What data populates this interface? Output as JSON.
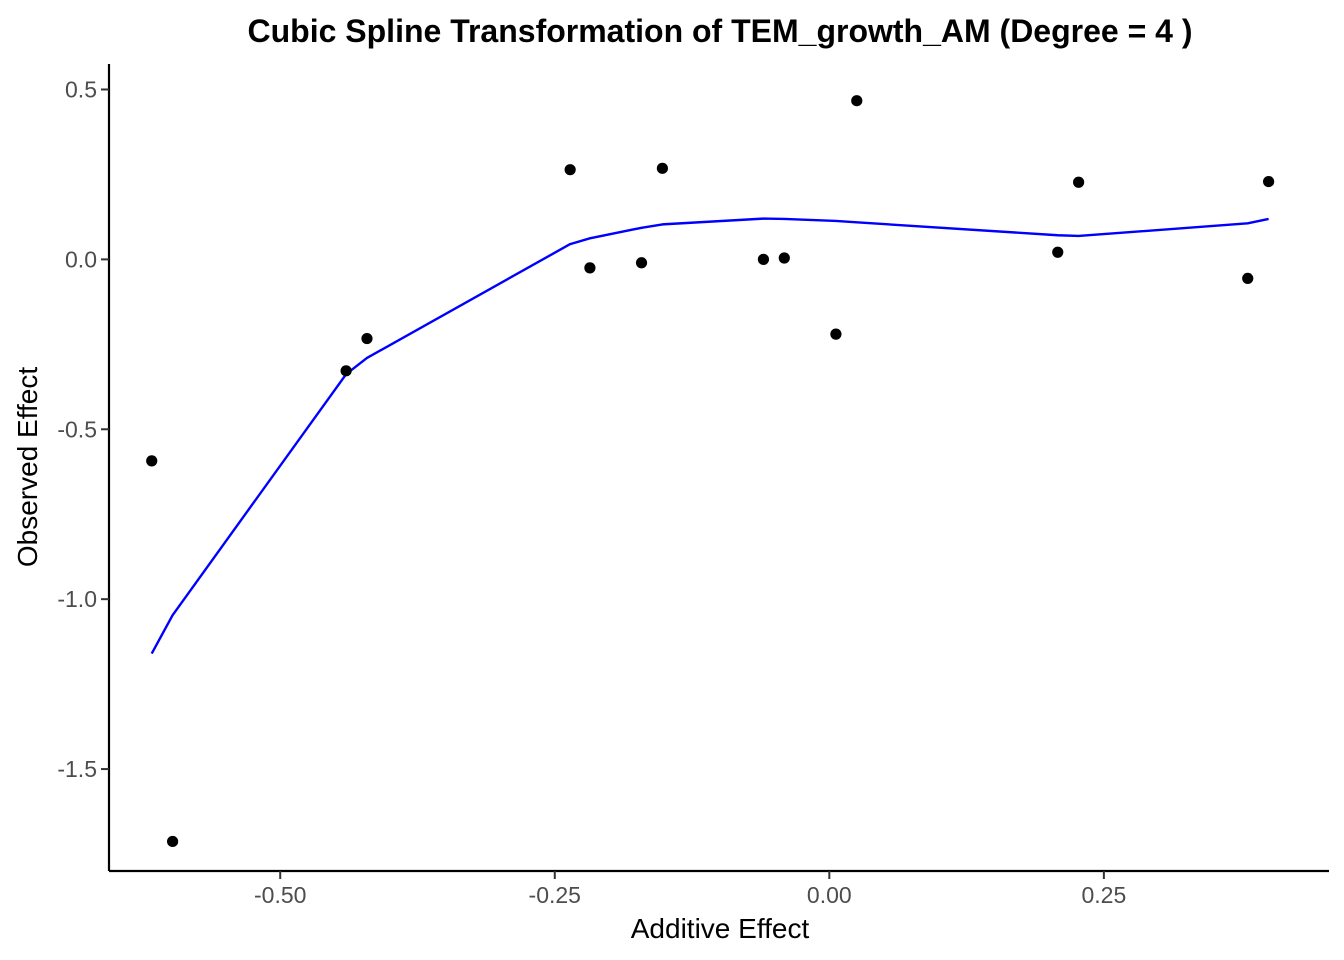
{
  "chart_data": {
    "type": "scatter",
    "title": "Cubic Spline Transformation of TEM_growth_AM (Degree = 4 )",
    "xlabel": "Additive Effect",
    "ylabel": "Observed Effect",
    "xlim": [
      -0.655,
      0.455
    ],
    "ylim": [
      -1.8,
      0.575
    ],
    "x_ticks": [
      {
        "value": -0.5,
        "label": "-0.50"
      },
      {
        "value": -0.25,
        "label": "-0.25"
      },
      {
        "value": 0.0,
        "label": "0.00"
      },
      {
        "value": 0.25,
        "label": "0.25"
      }
    ],
    "y_ticks": [
      {
        "value": -1.5,
        "label": "-1.5"
      },
      {
        "value": -1.0,
        "label": "-1.0"
      },
      {
        "value": -0.5,
        "label": "-0.5"
      },
      {
        "value": 0.0,
        "label": "0.0"
      },
      {
        "value": 0.5,
        "label": "0.5"
      }
    ],
    "grid": false,
    "legend": "none",
    "colors": {
      "points": "#000000",
      "fit_line": "#0000ff",
      "axis": "#000000",
      "tick_labels": "#4d4d4d"
    },
    "points": [
      {
        "x": -0.617,
        "y": -0.593
      },
      {
        "x": -0.598,
        "y": -1.713
      },
      {
        "x": -0.44,
        "y": -0.328
      },
      {
        "x": -0.421,
        "y": -0.233
      },
      {
        "x": -0.236,
        "y": 0.264
      },
      {
        "x": -0.218,
        "y": -0.025
      },
      {
        "x": -0.171,
        "y": -0.01
      },
      {
        "x": -0.152,
        "y": 0.268
      },
      {
        "x": -0.06,
        "y": 0.0
      },
      {
        "x": -0.041,
        "y": 0.004
      },
      {
        "x": 0.006,
        "y": -0.22
      },
      {
        "x": 0.025,
        "y": 0.467
      },
      {
        "x": 0.208,
        "y": 0.021
      },
      {
        "x": 0.227,
        "y": 0.227
      },
      {
        "x": 0.381,
        "y": -0.056
      },
      {
        "x": 0.4,
        "y": 0.229
      }
    ],
    "fit_line": [
      {
        "x": -0.617,
        "y": -1.16
      },
      {
        "x": -0.598,
        "y": -1.047
      },
      {
        "x": -0.44,
        "y": -0.338
      },
      {
        "x": -0.421,
        "y": -0.29
      },
      {
        "x": -0.236,
        "y": 0.045
      },
      {
        "x": -0.218,
        "y": 0.062
      },
      {
        "x": -0.171,
        "y": 0.093
      },
      {
        "x": -0.152,
        "y": 0.103
      },
      {
        "x": -0.06,
        "y": 0.12
      },
      {
        "x": -0.041,
        "y": 0.119
      },
      {
        "x": 0.006,
        "y": 0.113
      },
      {
        "x": 0.025,
        "y": 0.109
      },
      {
        "x": 0.208,
        "y": 0.071
      },
      {
        "x": 0.227,
        "y": 0.069
      },
      {
        "x": 0.381,
        "y": 0.106
      },
      {
        "x": 0.4,
        "y": 0.119
      }
    ]
  }
}
